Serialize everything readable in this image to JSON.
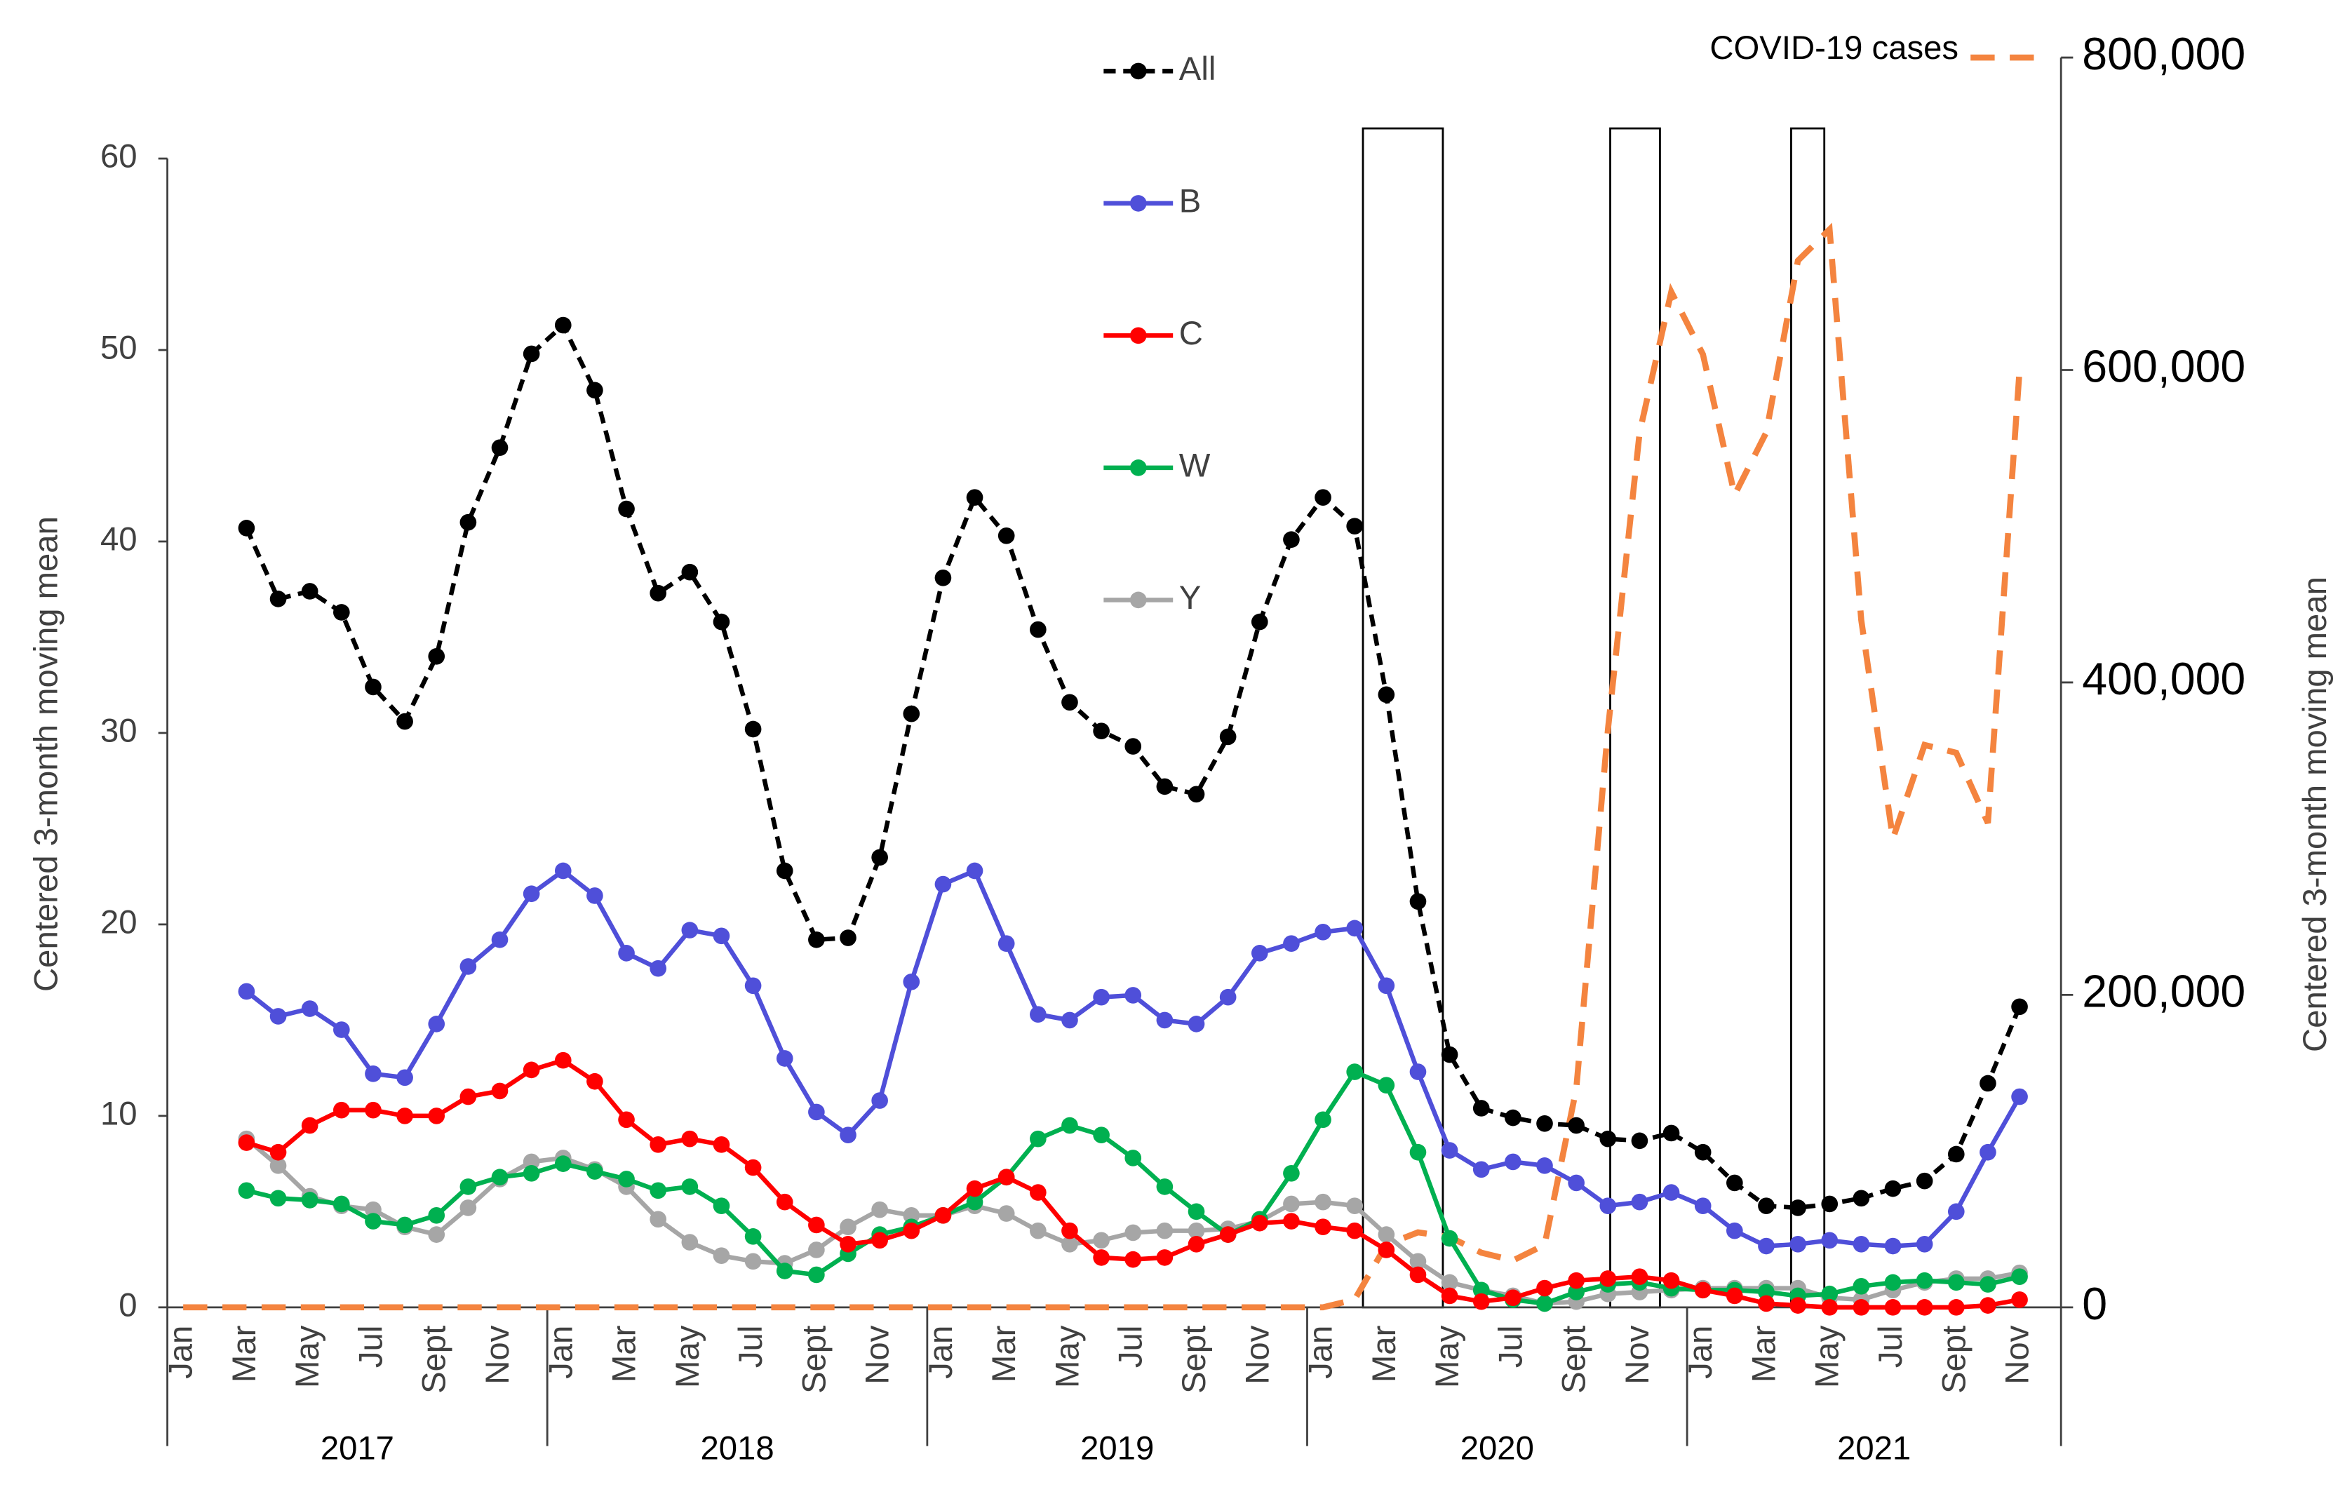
{
  "chart_data": {
    "type": "line",
    "y_label": "Centered 3-month moving mean",
    "y2_label": "Centered 3-month moving mean",
    "categories": [
      "Jan",
      null,
      "Mar",
      null,
      "May",
      null,
      "Jul",
      null,
      "Sept",
      null,
      "Nov",
      null,
      "Jan",
      null,
      "Mar",
      null,
      "May",
      null,
      "Jul",
      null,
      "Sept",
      null,
      "Nov",
      null,
      "Jan",
      null,
      "Mar",
      null,
      "May",
      null,
      "Jul",
      null,
      "Sept",
      null,
      "Nov",
      null,
      "Jan",
      null,
      "Mar",
      null,
      "May",
      null,
      "Jul",
      null,
      "Sept",
      null,
      "Nov",
      null,
      "Jan",
      null,
      "Mar",
      null,
      "May",
      null,
      "Jul",
      null,
      "Sept",
      null,
      "Nov"
    ],
    "years": [
      "2017",
      "2018",
      "2019",
      "2020",
      "2021"
    ],
    "ylim": [
      0,
      60
    ],
    "yticks": [
      0,
      10,
      20,
      30,
      40,
      50,
      60
    ],
    "y2lim": [
      0,
      800000
    ],
    "y2ticks": [
      0,
      {
        "value": 200000,
        "label": "200,000"
      },
      {
        "value": 400000,
        "label": "400,000"
      },
      {
        "value": 600000,
        "label": "600,000"
      },
      {
        "value": 800000,
        "label": "800,000"
      }
    ],
    "series": [
      {
        "name": "All",
        "color": "#000000",
        "dashed": true,
        "markers": true,
        "values": [
          null,
          null,
          40.7,
          37.0,
          37.4,
          36.3,
          32.4,
          30.6,
          34.0,
          41.0,
          44.9,
          49.8,
          51.3,
          47.9,
          41.7,
          37.3,
          38.4,
          35.8,
          30.2,
          22.8,
          19.2,
          19.3,
          23.5,
          31.0,
          38.1,
          42.3,
          40.3,
          35.4,
          31.6,
          30.1,
          29.3,
          27.2,
          26.8,
          29.8,
          35.8,
          40.1,
          42.3,
          40.8,
          32.0,
          21.2,
          13.2,
          10.4,
          9.9,
          9.6,
          9.5,
          8.8,
          8.7,
          9.1,
          8.1,
          6.5,
          5.3,
          5.2,
          5.4,
          5.7,
          6.2,
          6.6,
          8.0,
          11.7,
          15.7
        ]
      },
      {
        "name": "B",
        "color": "#4f4fd9",
        "dashed": false,
        "markers": true,
        "values": [
          null,
          null,
          16.5,
          15.2,
          15.6,
          14.5,
          12.2,
          12.0,
          14.8,
          17.8,
          19.2,
          21.6,
          22.8,
          21.5,
          18.5,
          17.7,
          19.7,
          19.4,
          16.8,
          13.0,
          10.2,
          9.0,
          10.8,
          17.0,
          22.1,
          22.8,
          19.0,
          15.3,
          15.0,
          16.2,
          16.3,
          15.0,
          14.8,
          16.2,
          18.5,
          19.0,
          19.6,
          19.8,
          16.8,
          12.3,
          8.2,
          7.2,
          7.6,
          7.4,
          6.5,
          5.3,
          5.5,
          6.0,
          5.3,
          4.0,
          3.2,
          3.3,
          3.5,
          3.3,
          3.2,
          3.3,
          5.0,
          8.1,
          11.0
        ]
      },
      {
        "name": "C",
        "color": "#ff0000",
        "dashed": false,
        "markers": true,
        "values": [
          null,
          null,
          8.6,
          8.1,
          9.5,
          10.3,
          10.3,
          10.0,
          10.0,
          11.0,
          11.3,
          12.4,
          12.9,
          11.8,
          9.8,
          8.5,
          8.8,
          8.5,
          7.3,
          5.5,
          4.3,
          3.3,
          3.5,
          4.0,
          4.8,
          6.2,
          6.8,
          6.0,
          4.0,
          2.6,
          2.5,
          2.6,
          3.3,
          3.8,
          4.4,
          4.5,
          4.2,
          4.0,
          3.0,
          1.7,
          0.6,
          0.3,
          0.5,
          1.0,
          1.4,
          1.5,
          1.6,
          1.4,
          0.9,
          0.6,
          0.2,
          0.1,
          0,
          0,
          0,
          0,
          0,
          0.1,
          0.4
        ]
      },
      {
        "name": "W",
        "color": "#00b050",
        "dashed": false,
        "markers": true,
        "values": [
          null,
          null,
          6.1,
          5.7,
          5.6,
          5.4,
          4.5,
          4.3,
          4.8,
          6.3,
          6.8,
          7.0,
          7.5,
          7.1,
          6.7,
          6.1,
          6.3,
          5.3,
          3.7,
          1.9,
          1.7,
          2.8,
          3.8,
          4.2,
          4.8,
          5.5,
          6.8,
          8.8,
          9.5,
          9.0,
          7.8,
          6.3,
          5.0,
          3.8,
          4.6,
          7.0,
          9.8,
          12.3,
          11.6,
          8.1,
          3.6,
          0.9,
          0.4,
          0.2,
          0.8,
          1.2,
          1.3,
          1.0,
          0.9,
          0.9,
          0.8,
          0.6,
          0.7,
          1.1,
          1.3,
          1.4,
          1.3,
          1.2,
          1.6
        ]
      },
      {
        "name": "Y",
        "color": "#a6a6a6",
        "dashed": false,
        "markers": true,
        "values": [
          null,
          null,
          8.8,
          7.4,
          5.8,
          5.3,
          5.1,
          4.2,
          3.8,
          5.2,
          6.7,
          7.6,
          7.8,
          7.2,
          6.3,
          4.6,
          3.4,
          2.7,
          2.4,
          2.3,
          3.0,
          4.2,
          5.1,
          4.8,
          4.8,
          5.3,
          4.9,
          4.0,
          3.3,
          3.5,
          3.9,
          4.0,
          4.0,
          4.1,
          4.5,
          5.4,
          5.5,
          5.3,
          3.8,
          2.4,
          1.3,
          0.9,
          0.6,
          0.2,
          0.3,
          0.7,
          0.8,
          0.9,
          1.0,
          1.0,
          1.0,
          1.0,
          0.5,
          0.4,
          0.9,
          1.3,
          1.5,
          1.5,
          1.8
        ]
      },
      {
        "name": "COVID-19 cases",
        "color": "#f4843f",
        "dashed": true,
        "markers": false,
        "axis": "y2",
        "values": [
          0,
          0,
          0,
          0,
          0,
          0,
          0,
          0,
          0,
          0,
          0,
          0,
          0,
          0,
          0,
          0,
          0,
          0,
          0,
          0,
          0,
          0,
          0,
          0,
          0,
          0,
          0,
          0,
          0,
          0,
          0,
          0,
          0,
          0,
          0,
          0,
          0,
          5000,
          40000,
          48000,
          45000,
          35000,
          30000,
          40000,
          140000,
          370000,
          560000,
          650000,
          610000,
          520000,
          560000,
          670000,
          690000,
          440000,
          300000,
          360000,
          355000,
          310000,
          600000
        ]
      }
    ]
  }
}
